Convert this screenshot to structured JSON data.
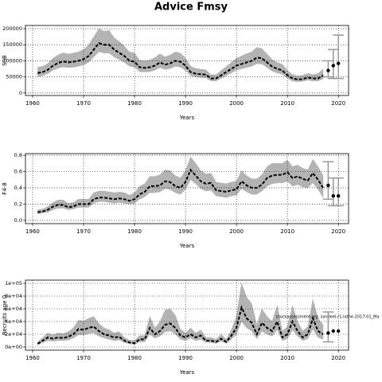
{
  "title": "Advice Fmsy",
  "chart_data": [
    {
      "type": "line",
      "ylabel": "SSB",
      "xlabel": "Years",
      "x": [
        1961,
        1962,
        1963,
        1964,
        1965,
        1966,
        1967,
        1968,
        1969,
        1970,
        1971,
        1972,
        1973,
        1974,
        1975,
        1976,
        1977,
        1978,
        1979,
        1980,
        1981,
        1982,
        1983,
        1984,
        1985,
        1986,
        1987,
        1988,
        1989,
        1990,
        1991,
        1992,
        1993,
        1994,
        1995,
        1996,
        1997,
        1998,
        1999,
        2000,
        2001,
        2002,
        2003,
        2004,
        2005,
        2006,
        2007,
        2008,
        2009,
        2010,
        2011,
        2012,
        2013,
        2014,
        2015,
        2016,
        2017
      ],
      "series": [
        {
          "color": "#000000",
          "band_color": "#b3b3b3",
          "values": [
            62000,
            65000,
            72000,
            85000,
            93000,
            98000,
            95000,
            97000,
            100000,
            105000,
            115000,
            135000,
            155000,
            150000,
            150000,
            135000,
            125000,
            115000,
            100000,
            97000,
            80000,
            78000,
            80000,
            85000,
            95000,
            88000,
            92000,
            100000,
            97000,
            85000,
            65000,
            60000,
            58000,
            57000,
            45000,
            45000,
            55000,
            65000,
            75000,
            85000,
            90000,
            95000,
            100000,
            110000,
            108000,
            95000,
            82000,
            75000,
            70000,
            55000,
            45000,
            42000,
            43000,
            48000,
            45000,
            45000,
            55000
          ],
          "lower": [
            51000,
            54000,
            60000,
            71000,
            77000,
            81000,
            79000,
            80000,
            83000,
            87000,
            95000,
            112000,
            128000,
            124000,
            124000,
            112000,
            104000,
            95000,
            83000,
            80000,
            66000,
            65000,
            66000,
            71000,
            79000,
            73000,
            76000,
            83000,
            80000,
            71000,
            54000,
            50000,
            48000,
            47000,
            37000,
            37000,
            46000,
            54000,
            62000,
            71000,
            75000,
            79000,
            83000,
            91000,
            90000,
            79000,
            68000,
            62000,
            58000,
            46000,
            37000,
            35000,
            36000,
            40000,
            37000,
            37000,
            44000
          ],
          "upper": [
            80000,
            83000,
            92000,
            108000,
            118000,
            125000,
            121000,
            124000,
            128000,
            135000,
            150000,
            175000,
            200000,
            192000,
            195000,
            172000,
            160000,
            146000,
            128000,
            124000,
            102000,
            100000,
            102000,
            110000,
            122000,
            112000,
            118000,
            128000,
            124000,
            108000,
            83000,
            76000,
            74000,
            72000,
            57000,
            57000,
            70000,
            82000,
            95000,
            108000,
            115000,
            122000,
            128000,
            142000,
            138000,
            121000,
            104000,
            95000,
            89000,
            70000,
            57000,
            53000,
            55000,
            61000,
            57000,
            60000,
            75000
          ]
        }
      ],
      "forecast": {
        "color": "#999999",
        "x": [
          2018,
          2019,
          2020
        ],
        "values": [
          70000,
          85000,
          92000
        ],
        "lower": [
          50000,
          45000,
          45000
        ],
        "upper": [
          100000,
          135000,
          180000
        ]
      },
      "xlim": [
        1958.6,
        2022
      ],
      "xticks": [
        1960,
        1970,
        1980,
        1990,
        2000,
        2010,
        2020
      ],
      "ylim": [
        -8000,
        210000
      ],
      "yticks": [
        0,
        50000,
        100000,
        150000,
        200000
      ],
      "grid": true
    },
    {
      "type": "line",
      "ylabel": "F4-8",
      "xlabel": "Years",
      "x": [
        1961,
        1962,
        1963,
        1964,
        1965,
        1966,
        1967,
        1968,
        1969,
        1970,
        1971,
        1972,
        1973,
        1974,
        1975,
        1976,
        1977,
        1978,
        1979,
        1980,
        1981,
        1982,
        1983,
        1984,
        1985,
        1986,
        1987,
        1988,
        1989,
        1990,
        1991,
        1992,
        1993,
        1994,
        1995,
        1996,
        1997,
        1998,
        1999,
        2000,
        2001,
        2002,
        2003,
        2004,
        2005,
        2006,
        2007,
        2008,
        2009,
        2010,
        2011,
        2012,
        2013,
        2014,
        2015,
        2016,
        2017
      ],
      "series": [
        {
          "color": "#000000",
          "band_color": "#b3b3b3",
          "values": [
            0.1,
            0.11,
            0.13,
            0.17,
            0.19,
            0.19,
            0.16,
            0.17,
            0.2,
            0.2,
            0.2,
            0.26,
            0.28,
            0.28,
            0.27,
            0.26,
            0.27,
            0.26,
            0.24,
            0.26,
            0.32,
            0.35,
            0.42,
            0.42,
            0.43,
            0.48,
            0.47,
            0.42,
            0.4,
            0.47,
            0.62,
            0.55,
            0.48,
            0.45,
            0.46,
            0.37,
            0.36,
            0.35,
            0.37,
            0.38,
            0.48,
            0.43,
            0.4,
            0.4,
            0.44,
            0.52,
            0.55,
            0.56,
            0.56,
            0.59,
            0.52,
            0.54,
            0.51,
            0.49,
            0.58,
            0.5,
            0.4
          ],
          "lower": [
            0.08,
            0.09,
            0.1,
            0.13,
            0.15,
            0.15,
            0.13,
            0.14,
            0.16,
            0.16,
            0.16,
            0.21,
            0.23,
            0.23,
            0.22,
            0.21,
            0.22,
            0.21,
            0.2,
            0.21,
            0.26,
            0.29,
            0.34,
            0.34,
            0.35,
            0.39,
            0.38,
            0.34,
            0.32,
            0.38,
            0.5,
            0.45,
            0.39,
            0.36,
            0.37,
            0.3,
            0.29,
            0.28,
            0.3,
            0.31,
            0.39,
            0.35,
            0.32,
            0.32,
            0.36,
            0.42,
            0.45,
            0.46,
            0.46,
            0.48,
            0.42,
            0.44,
            0.41,
            0.4,
            0.46,
            0.38,
            0.28
          ],
          "upper": [
            0.13,
            0.14,
            0.17,
            0.22,
            0.25,
            0.25,
            0.21,
            0.22,
            0.26,
            0.26,
            0.26,
            0.34,
            0.36,
            0.36,
            0.35,
            0.34,
            0.35,
            0.34,
            0.31,
            0.34,
            0.42,
            0.45,
            0.54,
            0.54,
            0.56,
            0.62,
            0.61,
            0.55,
            0.52,
            0.61,
            0.78,
            0.7,
            0.61,
            0.57,
            0.58,
            0.47,
            0.46,
            0.45,
            0.47,
            0.48,
            0.61,
            0.55,
            0.51,
            0.51,
            0.56,
            0.66,
            0.7,
            0.7,
            0.7,
            0.74,
            0.66,
            0.68,
            0.64,
            0.62,
            0.75,
            0.66,
            0.55
          ]
        }
      ],
      "forecast": {
        "color": "#999999",
        "x": [
          2018,
          2019,
          2020
        ],
        "values": [
          0.43,
          0.3,
          0.3
        ],
        "lower": [
          0.26,
          0.18,
          0.18
        ],
        "upper": [
          0.72,
          0.52,
          0.52
        ]
      },
      "xlim": [
        1958.6,
        2022
      ],
      "xticks": [
        1960,
        1970,
        1980,
        1990,
        2000,
        2010,
        2020
      ],
      "ylim": [
        -0.04,
        0.82
      ],
      "yticks": [
        {
          "value": 0,
          "label": "0.0"
        },
        0.2,
        0.4,
        0.6,
        0.8
      ],
      "grid": true
    },
    {
      "type": "line",
      "ylabel": "Recruits age 0",
      "xlabel": "Years",
      "annotation": "stockassessment.org, sandeel-r1-lathe-2017-01_Ma",
      "x": [
        1961,
        1962,
        1963,
        1964,
        1965,
        1966,
        1967,
        1968,
        1969,
        1970,
        1971,
        1972,
        1973,
        1974,
        1975,
        1976,
        1977,
        1978,
        1979,
        1980,
        1981,
        1982,
        1983,
        1984,
        1985,
        1986,
        1987,
        1988,
        1989,
        1990,
        1991,
        1992,
        1993,
        1994,
        1995,
        1996,
        1997,
        1998,
        1999,
        2000,
        2001,
        2002,
        2003,
        2004,
        2005,
        2006,
        2007,
        2008,
        2009,
        2010,
        2011,
        2012,
        2013,
        2014,
        2015,
        2016,
        2017
      ],
      "series": [
        {
          "color": "#000000",
          "band_color": "#b3b3b3",
          "values": [
            5000,
            10000,
            15000,
            13000,
            15000,
            14000,
            16000,
            20000,
            28000,
            27000,
            30000,
            32000,
            25000,
            20000,
            18000,
            15000,
            16000,
            10000,
            7000,
            6000,
            12000,
            12000,
            30000,
            20000,
            25000,
            35000,
            37000,
            30000,
            18000,
            15000,
            20000,
            15000,
            18000,
            10000,
            10000,
            8000,
            13000,
            8000,
            18000,
            30000,
            62000,
            45000,
            38000,
            20000,
            38000,
            30000,
            25000,
            40000,
            15000,
            20000,
            40000,
            25000,
            15000,
            20000,
            45000,
            25000,
            20000
          ],
          "lower": [
            3500,
            7000,
            10000,
            9000,
            10000,
            10000,
            11000,
            14000,
            19000,
            19000,
            21000,
            22000,
            17000,
            14000,
            12000,
            10000,
            11000,
            7000,
            5000,
            4000,
            8000,
            8000,
            20000,
            14000,
            17000,
            24000,
            25000,
            20000,
            12000,
            10000,
            14000,
            10000,
            12000,
            7000,
            7000,
            5500,
            9000,
            5500,
            12000,
            20000,
            40000,
            30000,
            25000,
            13000,
            25000,
            20000,
            17000,
            27000,
            10000,
            13000,
            27000,
            17000,
            10000,
            13000,
            28000,
            15000,
            12000
          ],
          "upper": [
            8000,
            15000,
            22000,
            19000,
            22000,
            21000,
            24000,
            30000,
            42000,
            41000,
            45000,
            48000,
            37000,
            30000,
            27000,
            22000,
            24000,
            15000,
            11000,
            10000,
            18000,
            18000,
            48000,
            30000,
            40000,
            58000,
            60000,
            50000,
            28000,
            22000,
            30000,
            22000,
            27000,
            15000,
            15000,
            12000,
            20000,
            12000,
            27000,
            48000,
            100000,
            78000,
            68000,
            35000,
            60000,
            48000,
            40000,
            65000,
            25000,
            32000,
            65000,
            40000,
            25000,
            32000,
            75000,
            45000,
            35000
          ]
        }
      ],
      "forecast": {
        "color": "#999999",
        "x": [
          2018,
          2019,
          2020
        ],
        "values": [
          22000,
          25000,
          25000
        ],
        "lower": [
          8000,
          null,
          null
        ],
        "upper": [
          55000,
          null,
          null
        ]
      },
      "xlim": [
        1958.6,
        2022
      ],
      "xticks": [
        1960,
        1970,
        1980,
        1990,
        2000,
        2010,
        2020
      ],
      "ylim": [
        -5000,
        105000
      ],
      "yticks": [
        {
          "value": 0,
          "label": "0e+00"
        },
        {
          "value": 20000,
          "label": "2e+04"
        },
        {
          "value": 40000,
          "label": "4e+04"
        },
        {
          "value": 60000,
          "label": "6e+04"
        },
        {
          "value": 80000,
          "label": "8e+04"
        },
        {
          "value": 100000,
          "label": "1e+05"
        }
      ],
      "grid": true
    }
  ]
}
